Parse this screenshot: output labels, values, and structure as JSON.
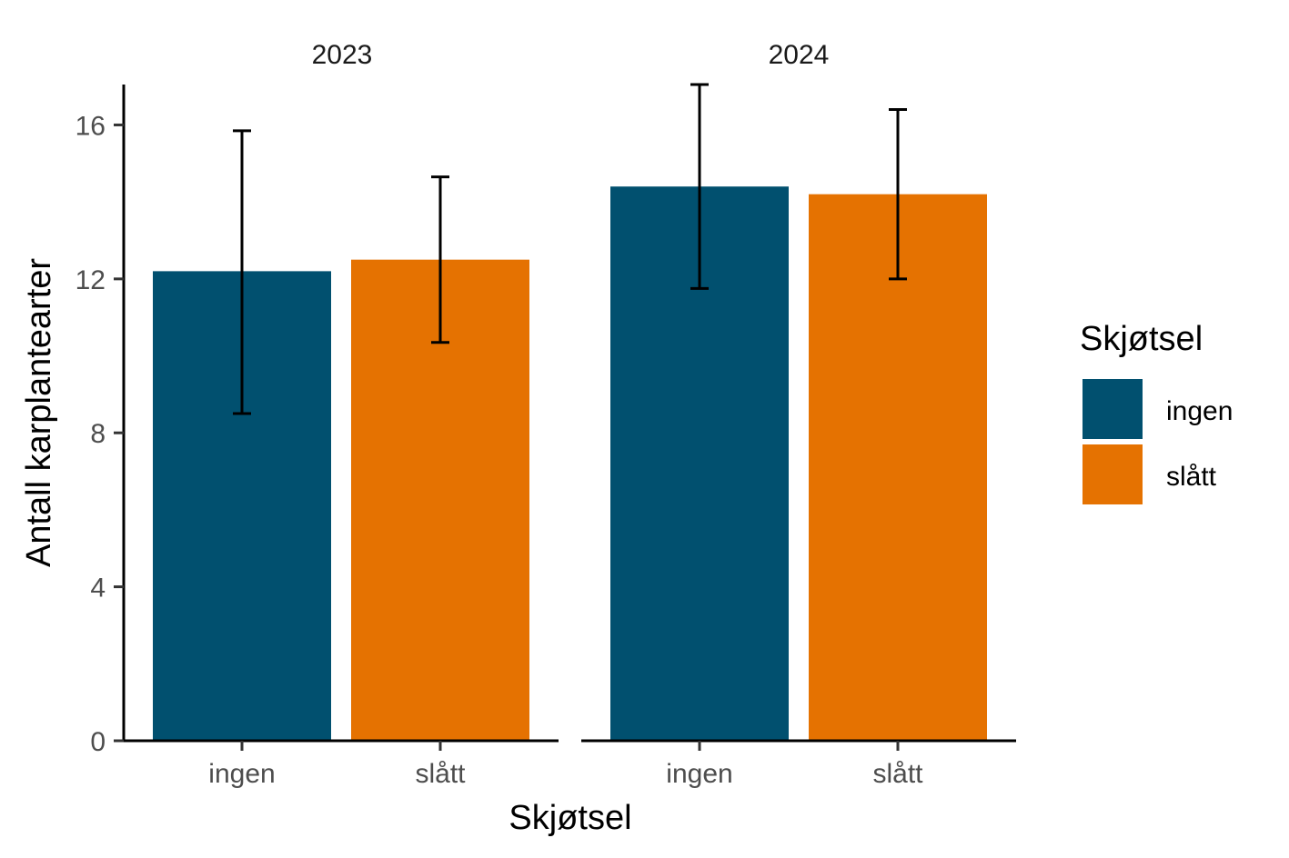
{
  "chart_data": {
    "type": "bar",
    "facet_variable": "year",
    "facets": [
      "2023",
      "2024"
    ],
    "categories": [
      "ingen",
      "slått"
    ],
    "values": {
      "2023": [
        12.2,
        12.5
      ],
      "2024": [
        14.4,
        14.2
      ]
    },
    "error_bars": {
      "2023": [
        [
          8.5,
          15.85
        ],
        [
          10.35,
          14.65
        ]
      ],
      "2024": [
        [
          11.75,
          17.05
        ],
        [
          12.0,
          16.4
        ]
      ]
    },
    "xlabel": "Skjøtsel",
    "ylabel": "Antall karplantearter",
    "ylim": [
      0,
      17.05
    ],
    "yticks": [
      "0",
      "4",
      "8",
      "12",
      "16"
    ],
    "ytick_values": [
      0,
      4,
      8,
      12,
      16
    ],
    "grid": false,
    "legend": {
      "title": "Skjøtsel",
      "placement": "right",
      "entries": [
        {
          "label": "ingen",
          "color": "#01506f"
        },
        {
          "label": "slått",
          "color": "#e57201"
        }
      ]
    }
  }
}
